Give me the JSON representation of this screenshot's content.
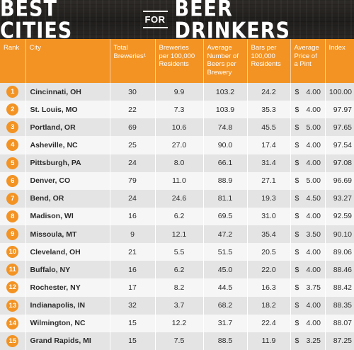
{
  "title": {
    "part1": "BEST CITIES",
    "connector": "FOR",
    "part2": "BEER DRINKERS"
  },
  "chart_data": {
    "type": "table",
    "columns": [
      "Rank",
      "City",
      "Total Breweries¹",
      "Breweries per 100,000 Residents",
      "Average Number of Beers per Brewery",
      "Bars per 100,000 Residents",
      "Average Price of a Pint",
      "Index"
    ],
    "rows": [
      {
        "rank": "1",
        "city": "Cincinnati, OH",
        "total_breweries": "30",
        "breweries_per_100k": "9.9",
        "avg_beers_per_brewery": "103.2",
        "bars_per_100k": "24.2",
        "price_currency": "$",
        "price": "4.00",
        "index": "100.00"
      },
      {
        "rank": "2",
        "city": "St. Louis, MO",
        "total_breweries": "22",
        "breweries_per_100k": "7.3",
        "avg_beers_per_brewery": "103.9",
        "bars_per_100k": "35.3",
        "price_currency": "$",
        "price": "4.00",
        "index": "97.97"
      },
      {
        "rank": "3",
        "city": "Portland, OR",
        "total_breweries": "69",
        "breweries_per_100k": "10.6",
        "avg_beers_per_brewery": "74.8",
        "bars_per_100k": "45.5",
        "price_currency": "$",
        "price": "5.00",
        "index": "97.65"
      },
      {
        "rank": "4",
        "city": "Asheville, NC",
        "total_breweries": "25",
        "breweries_per_100k": "27.0",
        "avg_beers_per_brewery": "90.0",
        "bars_per_100k": "17.4",
        "price_currency": "$",
        "price": "4.00",
        "index": "97.54"
      },
      {
        "rank": "5",
        "city": "Pittsburgh, PA",
        "total_breweries": "24",
        "breweries_per_100k": "8.0",
        "avg_beers_per_brewery": "66.1",
        "bars_per_100k": "31.4",
        "price_currency": "$",
        "price": "4.00",
        "index": "97.08"
      },
      {
        "rank": "6",
        "city": "Denver, CO",
        "total_breweries": "79",
        "breweries_per_100k": "11.0",
        "avg_beers_per_brewery": "88.9",
        "bars_per_100k": "27.1",
        "price_currency": "$",
        "price": "5.00",
        "index": "96.69"
      },
      {
        "rank": "7",
        "city": "Bend, OR",
        "total_breweries": "24",
        "breweries_per_100k": "24.6",
        "avg_beers_per_brewery": "81.1",
        "bars_per_100k": "19.3",
        "price_currency": "$",
        "price": "4.50",
        "index": "93.27"
      },
      {
        "rank": "8",
        "city": "Madison, WI",
        "total_breweries": "16",
        "breweries_per_100k": "6.2",
        "avg_beers_per_brewery": "69.5",
        "bars_per_100k": "31.0",
        "price_currency": "$",
        "price": "4.00",
        "index": "92.59"
      },
      {
        "rank": "9",
        "city": "Missoula, MT",
        "total_breweries": "9",
        "breweries_per_100k": "12.1",
        "avg_beers_per_brewery": "47.2",
        "bars_per_100k": "35.4",
        "price_currency": "$",
        "price": "3.50",
        "index": "90.10"
      },
      {
        "rank": "10",
        "city": "Cleveland, OH",
        "total_breweries": "21",
        "breweries_per_100k": "5.5",
        "avg_beers_per_brewery": "51.5",
        "bars_per_100k": "20.5",
        "price_currency": "$",
        "price": "4.00",
        "index": "89.06"
      },
      {
        "rank": "11",
        "city": "Buffalo, NY",
        "total_breweries": "16",
        "breweries_per_100k": "6.2",
        "avg_beers_per_brewery": "45.0",
        "bars_per_100k": "22.0",
        "price_currency": "$",
        "price": "4.00",
        "index": "88.46"
      },
      {
        "rank": "12",
        "city": "Rochester, NY",
        "total_breweries": "17",
        "breweries_per_100k": "8.2",
        "avg_beers_per_brewery": "44.5",
        "bars_per_100k": "16.3",
        "price_currency": "$",
        "price": "3.75",
        "index": "88.42"
      },
      {
        "rank": "13",
        "city": "Indianapolis, IN",
        "total_breweries": "32",
        "breweries_per_100k": "3.7",
        "avg_beers_per_brewery": "68.2",
        "bars_per_100k": "18.2",
        "price_currency": "$",
        "price": "4.00",
        "index": "88.35"
      },
      {
        "rank": "14",
        "city": "Wilmington, NC",
        "total_breweries": "15",
        "breweries_per_100k": "12.2",
        "avg_beers_per_brewery": "31.7",
        "bars_per_100k": "22.4",
        "price_currency": "$",
        "price": "4.00",
        "index": "88.07"
      },
      {
        "rank": "15",
        "city": "Grand Rapids, MI",
        "total_breweries": "15",
        "breweries_per_100k": "7.5",
        "avg_beers_per_brewery": "88.5",
        "bars_per_100k": "11.9",
        "price_currency": "$",
        "price": "3.25",
        "index": "87.25"
      }
    ]
  },
  "colors": {
    "accent": "#f39323",
    "header_text": "#ffffff",
    "banner_bg": "#252321",
    "row_odd": "#e4e4e4",
    "row_even": "#f6f6f6",
    "text": "#2b2b2b"
  }
}
